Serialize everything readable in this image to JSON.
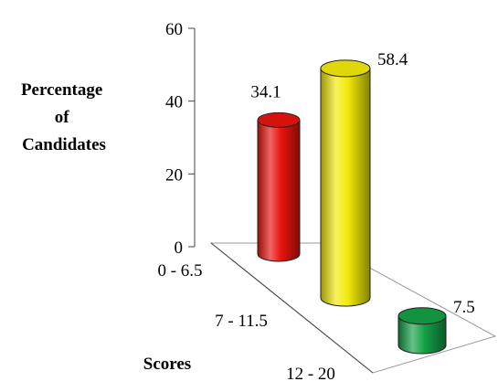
{
  "chart_data": {
    "type": "bar",
    "style": "3d-cylinder",
    "categories": [
      "0 - 6.5",
      "7 - 11.5",
      "12 - 20"
    ],
    "values": [
      34.1,
      58.4,
      7.5
    ],
    "value_labels": [
      "34.1",
      "58.4",
      "7.5"
    ],
    "colors": [
      "#e8140f",
      "#f2ea0a",
      "#14a046"
    ],
    "ylabel_lines": [
      "Percentage",
      "of",
      "Candidates"
    ],
    "xlabel": "Scores",
    "ylim": [
      0,
      60
    ],
    "yticks": [
      "0",
      "20",
      "40",
      "60"
    ],
    "grid": false,
    "legend": "none"
  }
}
